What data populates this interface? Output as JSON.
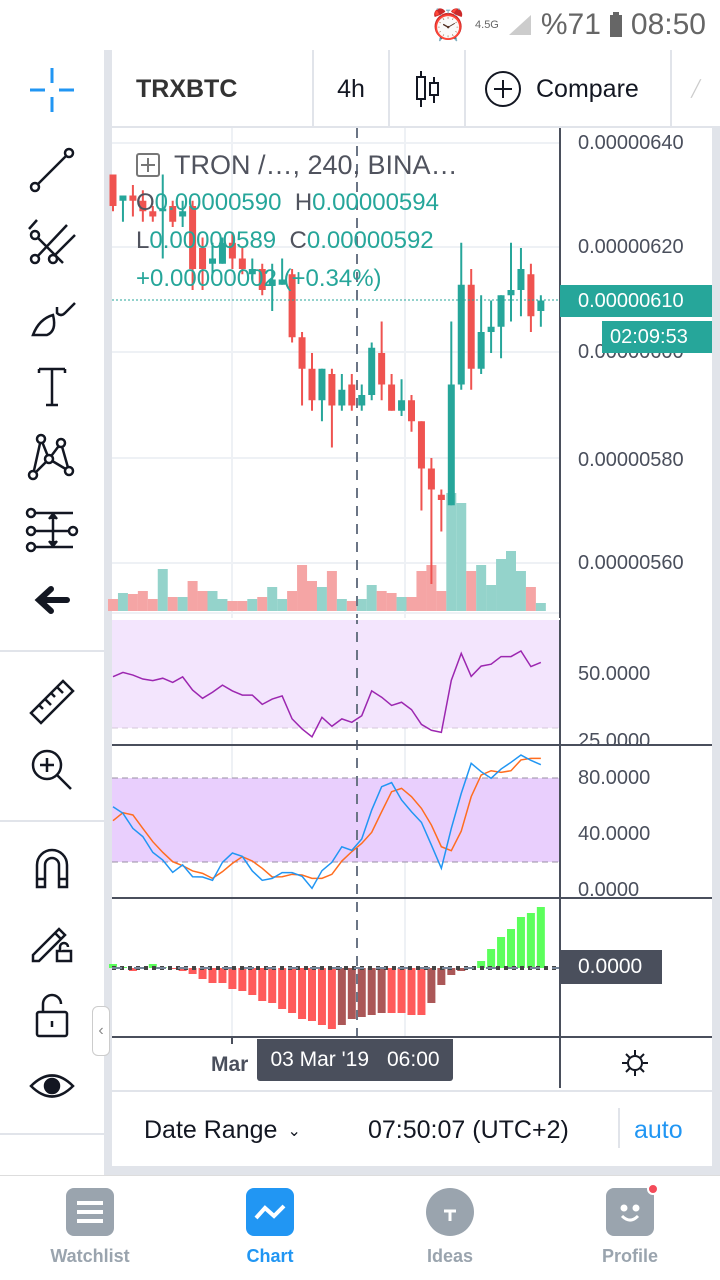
{
  "status_bar": {
    "network": "4.5G",
    "battery": "%71",
    "time": "08:50",
    "icons": [
      "alarm-icon",
      "signal-icon",
      "battery-icon"
    ]
  },
  "header": {
    "symbol": "TRXBTC",
    "interval": "4h",
    "chart_type_icon": "candles-icon",
    "compare_label": "Compare"
  },
  "toolbar": {
    "items": [
      "crosshair-icon",
      "trend-line-icon",
      "pitchfork-icon",
      "brush-icon",
      "text-icon",
      "pattern-icon",
      "measure-icon",
      "back-arrow-icon",
      "ruler-icon",
      "zoom-in-icon",
      "magnet-icon",
      "pencil-lock-icon",
      "lock-icon",
      "eye-icon"
    ],
    "active_color": "#2196f3"
  },
  "legend": {
    "title": "TRON /…, 240, BINA…",
    "o_label": "O",
    "o": "0.00000590",
    "h_label": "H",
    "h": "0.00000594",
    "l_label": "L",
    "l": "0.00000589",
    "c_label": "C",
    "c": "0.00000592",
    "change": "+0.00000002 (+0.34%)"
  },
  "price_axis": {
    "labels": [
      "0.00000640",
      "0.00000620",
      "0.00000600",
      "0.00000580",
      "0.00000560"
    ],
    "last_price": "0.00000610",
    "countdown": "02:09:53"
  },
  "rsi_axis": {
    "labels": [
      "50.0000",
      "25.0000"
    ]
  },
  "stoch_axis": {
    "labels": [
      "80.0000",
      "40.0000",
      "0.0000"
    ]
  },
  "macd_axis": {
    "label": "0.0000"
  },
  "time_axis": {
    "label": "Mar",
    "crosshair_date": "03 Mar '19",
    "crosshair_time": "06:00"
  },
  "bottom_bar": {
    "date_range": "Date Range",
    "clock": "07:50:07 (UTC+2)",
    "auto": "auto"
  },
  "nav": {
    "items": [
      {
        "label": "Watchlist",
        "icon": "list-icon"
      },
      {
        "label": "Chart",
        "icon": "chart-icon",
        "active": true
      },
      {
        "label": "Ideas",
        "icon": "bulb-icon"
      },
      {
        "label": "Profile",
        "icon": "smiley-icon",
        "badge": true
      }
    ]
  },
  "colors": {
    "up": "#26a69a",
    "down": "#ef5350",
    "up_volume": "#94d3cb",
    "down_volume": "#f5a5a5",
    "rsi": "#9c27b0",
    "stoch_k": "#2196f3",
    "stoch_d": "#ff6d1f",
    "macd_up": "#5cff5c",
    "macd_down": "#ff5a5a",
    "macd_down_rising": "#ab5757",
    "accent": "#2196f3"
  },
  "chart_data": {
    "type": "candlestick",
    "price_unit": "1e-8 BTC",
    "ohlc": [
      [
        634,
        634,
        627,
        628
      ],
      [
        629,
        630,
        625,
        630
      ],
      [
        630,
        632,
        626,
        629
      ],
      [
        629,
        631,
        625,
        627
      ],
      [
        627,
        628,
        625,
        626
      ],
      [
        627,
        634,
        618,
        627.5
      ],
      [
        628,
        629,
        624,
        625
      ],
      [
        626,
        629,
        624,
        627
      ],
      [
        628,
        629,
        612,
        616
      ],
      [
        620,
        622,
        612,
        616
      ],
      [
        617,
        621,
        615,
        618
      ],
      [
        617,
        622,
        617,
        621
      ],
      [
        621,
        623,
        616,
        618
      ],
      [
        618,
        620,
        615,
        616
      ],
      [
        615,
        618,
        614,
        616
      ],
      [
        616,
        617,
        611,
        612
      ],
      [
        613,
        617,
        608,
        614
      ],
      [
        613,
        618,
        613,
        614
      ],
      [
        615,
        616,
        602,
        603
      ],
      [
        603,
        604,
        590,
        597
      ],
      [
        597,
        600,
        589,
        591
      ],
      [
        591,
        597,
        587,
        597
      ],
      [
        596,
        597,
        582,
        590
      ],
      [
        590,
        596,
        589,
        593
      ],
      [
        594,
        596,
        589,
        590
      ],
      [
        590,
        594,
        589,
        592
      ],
      [
        592,
        602,
        591,
        601
      ],
      [
        600,
        606,
        591,
        594
      ],
      [
        594,
        596,
        589,
        589
      ],
      [
        589,
        595,
        588,
        591
      ],
      [
        591,
        592,
        585,
        587
      ],
      [
        587,
        587,
        570,
        578
      ],
      [
        578,
        580,
        556,
        574
      ],
      [
        573,
        574,
        566,
        572
      ],
      [
        571,
        606,
        571,
        594
      ],
      [
        594,
        621,
        593,
        613
      ],
      [
        613,
        616,
        593,
        597
      ],
      [
        597,
        611,
        596,
        604
      ],
      [
        604,
        610,
        600,
        605
      ],
      [
        605,
        611,
        599,
        611
      ],
      [
        611,
        621,
        606,
        612
      ],
      [
        612,
        620,
        607,
        616
      ],
      [
        615,
        617,
        604,
        607
      ],
      [
        608,
        611,
        605,
        610
      ]
    ],
    "volume": [
      12,
      18,
      17,
      20,
      12,
      42,
      14,
      14,
      30,
      20,
      20,
      12,
      10,
      10,
      12,
      14,
      24,
      12,
      20,
      46,
      30,
      24,
      40,
      12,
      10,
      12,
      26,
      20,
      18,
      14,
      14,
      40,
      46,
      20,
      118,
      108,
      40,
      46,
      26,
      52,
      60,
      40,
      24,
      8
    ],
    "rsi": [
      49.0,
      50.6,
      49.6,
      48.1,
      47.5,
      48.4,
      46.8,
      48.9,
      43.9,
      40.8,
      43.1,
      45.8,
      43.6,
      42.0,
      42.0,
      38.5,
      40.5,
      41.7,
      33.0,
      29.2,
      26.2,
      33.6,
      30.2,
      33.0,
      31.7,
      34.2,
      43.6,
      41.2,
      38.1,
      39.3,
      36.5,
      30.9,
      28.7,
      27.9,
      47.6,
      57.8,
      49.1,
      53.0,
      53.7,
      56.6,
      56.6,
      58.7,
      52.8,
      54.4
    ],
    "rsi_bands": [
      30,
      70
    ],
    "stoch_k": [
      59.5,
      54.8,
      44.0,
      38.1,
      26.9,
      21.4,
      12.6,
      17.9,
      9.5,
      9.3,
      6.9,
      19.8,
      26.4,
      24.0,
      13.6,
      6.9,
      8.3,
      12.4,
      12.4,
      9.8,
      1.2,
      13.8,
      19.8,
      30.9,
      28.3,
      36.4,
      57.1,
      73.8,
      76.7,
      64.3,
      55.9,
      48.3,
      32.1,
      15.5,
      44.0,
      69.0,
      90.5,
      84.5,
      79.8,
      86.4,
      91.2,
      96.4,
      92.6,
      89.5
    ],
    "stoch_d": [
      49.5,
      55.2,
      53.6,
      44.0,
      34.5,
      26.9,
      20.2,
      17.4,
      13.6,
      11.9,
      8.3,
      13.1,
      19.0,
      23.8,
      20.7,
      15.5,
      9.3,
      9.5,
      11.2,
      10.7,
      8.3,
      8.3,
      11.2,
      20.7,
      27.4,
      33.3,
      41.2,
      55.9,
      70.2,
      72.6,
      66.7,
      58.3,
      46.4,
      30.9,
      28.1,
      42.1,
      66.7,
      82.1,
      85.2,
      84.0,
      85.2,
      92.9,
      94.0,
      94.0
    ],
    "stoch_bands": [
      20,
      80
    ],
    "macd_histogram": [
      4,
      0,
      -3,
      0,
      4,
      0,
      -1,
      -3,
      -6,
      -11,
      -15,
      -15,
      -21,
      -23,
      -27,
      -33,
      -35,
      -41,
      -45,
      -51,
      -53,
      -57,
      -61,
      -57,
      -51,
      -49,
      -47,
      -45,
      -45,
      -45,
      -47,
      -47,
      -35,
      -17,
      -7,
      -3,
      -1,
      7,
      19,
      31,
      39,
      51,
      55,
      61
    ]
  }
}
